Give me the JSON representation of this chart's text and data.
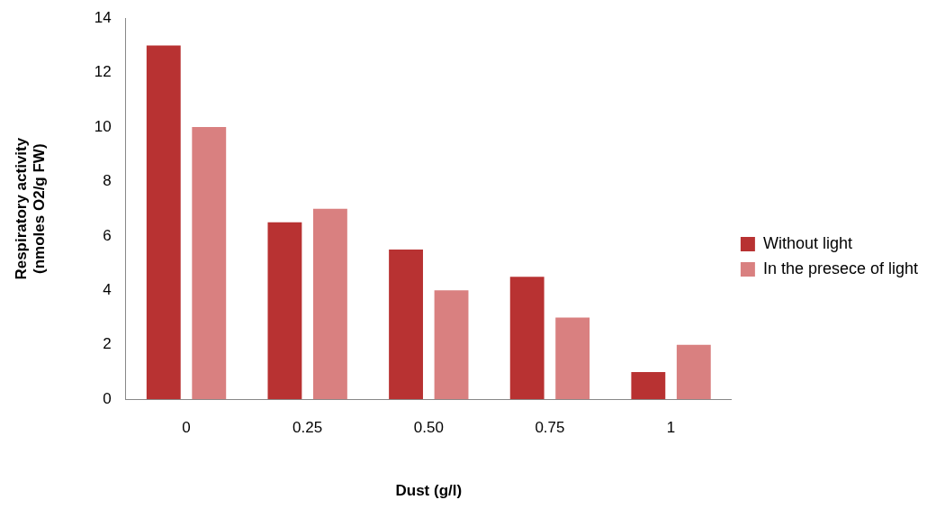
{
  "chart_data": {
    "type": "bar",
    "xlabel": "Dust (g/l)",
    "ylabel": "Respiratory activity\n(nmoles O2/g FW)",
    "categories": [
      "0",
      "0.25",
      "0.50",
      "0.75",
      "1"
    ],
    "series": [
      {
        "name": "Without light",
        "color": "#b83232",
        "values": [
          13,
          6.5,
          5.5,
          4.5,
          1
        ]
      },
      {
        "name": "In the presece of light",
        "color": "#d98080",
        "values": [
          10,
          7,
          4,
          3,
          2
        ]
      }
    ],
    "ylim": [
      0,
      14
    ],
    "yticks": [
      0,
      2,
      4,
      6,
      8,
      10,
      12,
      14
    ],
    "grid": false,
    "legend": "right"
  }
}
